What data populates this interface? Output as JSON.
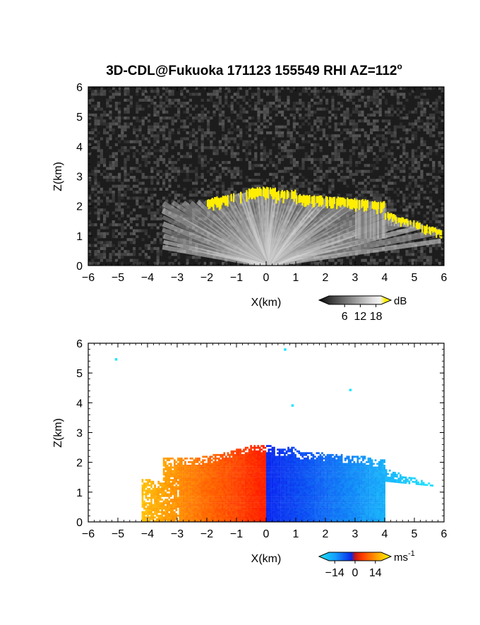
{
  "title": "3D-CDL@Fukuoka 171123 155549 RHI AZ=112",
  "title_superscript": "o",
  "chart_data": [
    {
      "type": "heatmap",
      "xlabel": "X(km)",
      "ylabel": "Z(km)",
      "xlim": [
        -6,
        6
      ],
      "ylim": [
        0,
        6
      ],
      "x_ticks": [
        "-6",
        "-5",
        "-4",
        "-3",
        "-2",
        "-1",
        "0",
        "1",
        "2",
        "3",
        "4",
        "5",
        "6"
      ],
      "y_ticks": [
        "0",
        "1",
        "2",
        "3",
        "4",
        "5",
        "6"
      ],
      "colorbar": {
        "unit": "dB",
        "ticks": [
          "6",
          "12",
          "18"
        ],
        "tick_values": [
          6,
          12,
          18
        ],
        "range": [
          0,
          20
        ]
      },
      "colors": {
        "background": "#1c1c1c",
        "signal": "#d0d0d0",
        "high": "#ffee00"
      }
    },
    {
      "type": "heatmap",
      "xlabel": "X(km)",
      "ylabel": "Z(km)",
      "xlim": [
        -6,
        6
      ],
      "ylim": [
        0,
        6
      ],
      "x_ticks": [
        "-6",
        "-5",
        "-4",
        "-3",
        "-2",
        "-1",
        "0",
        "1",
        "2",
        "3",
        "4",
        "5",
        "6"
      ],
      "y_ticks": [
        "0",
        "1",
        "2",
        "3",
        "4",
        "5",
        "6"
      ],
      "colorbar": {
        "unit": "ms",
        "unit_superscript": "-1",
        "ticks": [
          "-14",
          "0",
          "14"
        ],
        "tick_values": [
          -14,
          0,
          14
        ],
        "range": [
          -18,
          18
        ]
      },
      "colors": {
        "negative": "#0a3cf0",
        "negative_far": "#19d7ff",
        "positive": "#ff2800",
        "positive_far": "#ffe600"
      }
    }
  ]
}
